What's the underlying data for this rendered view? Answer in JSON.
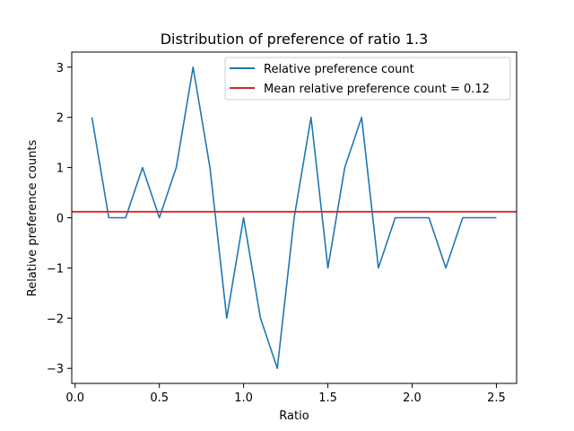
{
  "chart_data": {
    "type": "line",
    "title": "Distribution of preference of ratio 1.3",
    "xlabel": "Ratio",
    "ylabel": "Relative preference counts",
    "xlim": [
      -0.02,
      2.62
    ],
    "ylim": [
      -3.3,
      3.3
    ],
    "xticks": [
      0.0,
      0.5,
      1.0,
      1.5,
      2.0,
      2.5
    ],
    "xtick_labels": [
      "0.0",
      "0.5",
      "1.0",
      "1.5",
      "2.0",
      "2.5"
    ],
    "yticks": [
      3,
      2,
      1,
      0,
      -1,
      -2,
      -3
    ],
    "ytick_labels": [
      "3",
      "2",
      "1",
      "0",
      "−1",
      "−2",
      "−3"
    ],
    "legend_position": "top-right",
    "grid": false,
    "series": [
      {
        "name": "Relative preference count",
        "color": "#1f77b4",
        "x": [
          0.1,
          0.2,
          0.3,
          0.4,
          0.5,
          0.6,
          0.7,
          0.8,
          0.9,
          1.0,
          1.1,
          1.2,
          1.3,
          1.4,
          1.5,
          1.6,
          1.7,
          1.8,
          1.9,
          2.0,
          2.1,
          2.2,
          2.3,
          2.4,
          2.5
        ],
        "y": [
          2,
          0,
          0,
          1,
          0,
          1,
          3,
          1,
          -2,
          0,
          -2,
          -3,
          0,
          2,
          -1,
          1,
          2,
          -1,
          0,
          0,
          0,
          -1,
          0,
          0,
          0
        ]
      }
    ],
    "hlines": [
      {
        "name": "Mean relative preference count = 0.12",
        "y": 0.12,
        "color": "#d62728"
      }
    ]
  }
}
